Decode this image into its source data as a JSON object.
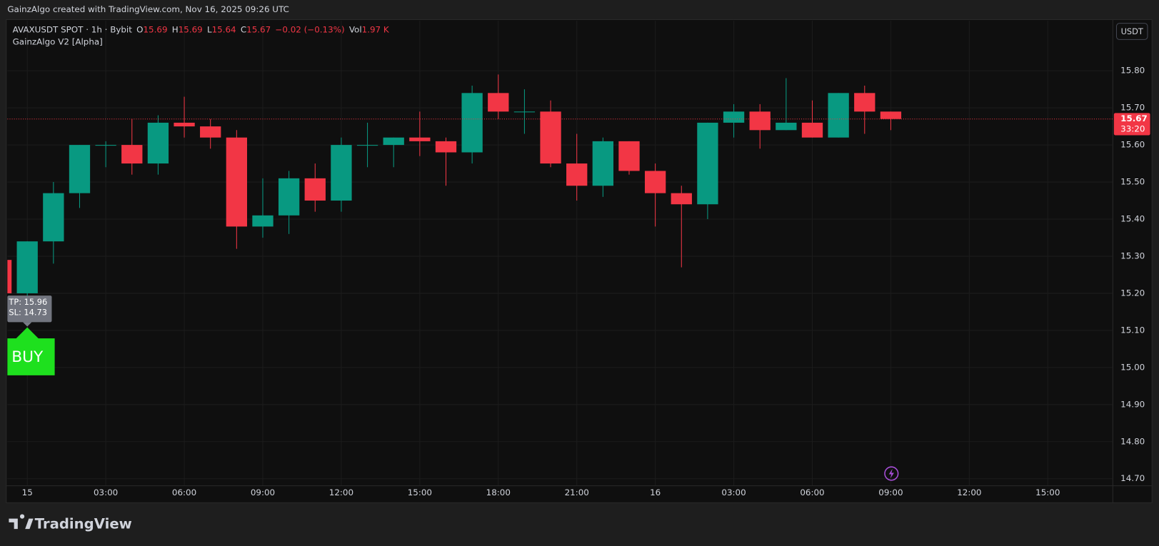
{
  "header": "GainzAlgo created with TradingView.com, Nov 16, 2025 09:26 UTC",
  "footer": "TradingView",
  "chart_data": {
    "type": "candlestick",
    "symbol": "AVAXUSDT SPOT · 1h · Bybit",
    "indicator": "GainzAlgo V2 [Alpha]",
    "currency": "USDT",
    "legend": [
      {
        "key": "O",
        "value": 15.69
      },
      {
        "key": "H",
        "value": 15.69
      },
      {
        "key": "L",
        "value": 15.64
      },
      {
        "key": "C",
        "value": 15.67
      }
    ],
    "change": "−0.02 (−0.13%)",
    "volume_label": "Vol",
    "volume": "1.97 K",
    "x": [
      -1,
      0,
      1,
      2,
      3,
      4,
      5,
      6,
      7,
      8,
      9,
      10,
      11,
      12,
      13,
      14,
      15,
      16,
      17,
      18,
      19,
      20,
      21,
      22,
      23,
      24,
      25,
      26,
      27,
      28,
      29,
      30,
      31,
      32,
      33
    ],
    "open": [
      15.29,
      15.2,
      15.34,
      15.47,
      15.6,
      15.6,
      15.55,
      15.66,
      15.65,
      15.62,
      15.38,
      15.41,
      15.51,
      15.45,
      15.6,
      15.6,
      15.62,
      15.61,
      15.58,
      15.74,
      15.69,
      15.69,
      15.55,
      15.49,
      15.61,
      15.53,
      15.47,
      15.44,
      15.66,
      15.69,
      15.64,
      15.66,
      15.62,
      15.74,
      15.69
    ],
    "high": [
      15.29,
      15.34,
      15.5,
      15.6,
      15.61,
      15.67,
      15.68,
      15.73,
      15.67,
      15.64,
      15.51,
      15.53,
      15.55,
      15.62,
      15.66,
      15.62,
      15.69,
      15.62,
      15.76,
      15.79,
      15.75,
      15.72,
      15.63,
      15.62,
      15.61,
      15.55,
      15.49,
      15.66,
      15.71,
      15.71,
      15.78,
      15.72,
      15.74,
      15.76,
      15.69
    ],
    "low": [
      15.18,
      15.18,
      15.28,
      15.43,
      15.54,
      15.52,
      15.52,
      15.62,
      15.59,
      15.32,
      15.35,
      15.36,
      15.42,
      15.42,
      15.54,
      15.54,
      15.57,
      15.49,
      15.55,
      15.67,
      15.63,
      15.54,
      15.45,
      15.46,
      15.52,
      15.38,
      15.27,
      15.4,
      15.62,
      15.59,
      15.64,
      15.62,
      15.62,
      15.63,
      15.64
    ],
    "close": [
      15.2,
      15.34,
      15.47,
      15.6,
      15.6,
      15.55,
      15.66,
      15.65,
      15.62,
      15.38,
      15.41,
      15.51,
      15.45,
      15.6,
      15.6,
      15.62,
      15.61,
      15.58,
      15.74,
      15.69,
      15.69,
      15.55,
      15.49,
      15.61,
      15.53,
      15.47,
      15.44,
      15.66,
      15.69,
      15.64,
      15.66,
      15.62,
      15.74,
      15.69,
      15.67
    ],
    "up_color": "#089981",
    "down_color": "#f23645",
    "xlim": [
      -0.76,
      41.47
    ],
    "xticks": [
      {
        "value": 0,
        "label": "15"
      },
      {
        "value": 3,
        "label": "03:00"
      },
      {
        "value": 6,
        "label": "06:00"
      },
      {
        "value": 9,
        "label": "09:00"
      },
      {
        "value": 12,
        "label": "12:00"
      },
      {
        "value": 15,
        "label": "15:00"
      },
      {
        "value": 18,
        "label": "18:00"
      },
      {
        "value": 21,
        "label": "21:00"
      },
      {
        "value": 24,
        "label": "16"
      },
      {
        "value": 27,
        "label": "03:00"
      },
      {
        "value": 30,
        "label": "06:00"
      },
      {
        "value": 33,
        "label": "09:00"
      },
      {
        "value": 36,
        "label": "12:00"
      },
      {
        "value": 39,
        "label": "15:00"
      }
    ],
    "ylim": [
      14.682,
      15.935
    ],
    "yticks": [
      {
        "value": 14.7,
        "label": "14.70"
      },
      {
        "value": 14.8,
        "label": "14.80"
      },
      {
        "value": 14.9,
        "label": "14.90"
      },
      {
        "value": 15,
        "label": "15.00"
      },
      {
        "value": 15.1,
        "label": "15.10"
      },
      {
        "value": 15.2,
        "label": "15.20"
      },
      {
        "value": 15.3,
        "label": "15.30"
      },
      {
        "value": 15.4,
        "label": "15.40"
      },
      {
        "value": 15.5,
        "label": "15.50"
      },
      {
        "value": 15.6,
        "label": "15.60"
      },
      {
        "value": 15.7,
        "label": "15.70"
      },
      {
        "value": 15.8,
        "label": "15.80"
      }
    ],
    "grid": true,
    "last_price": {
      "value": 15.67,
      "label": "15.67"
    },
    "countdown": "33:20",
    "signal": {
      "label": "BUY",
      "x": 0,
      "tp": "TP: 15.96",
      "sl": "SL: 14.73",
      "color": "#1ee01e"
    }
  }
}
